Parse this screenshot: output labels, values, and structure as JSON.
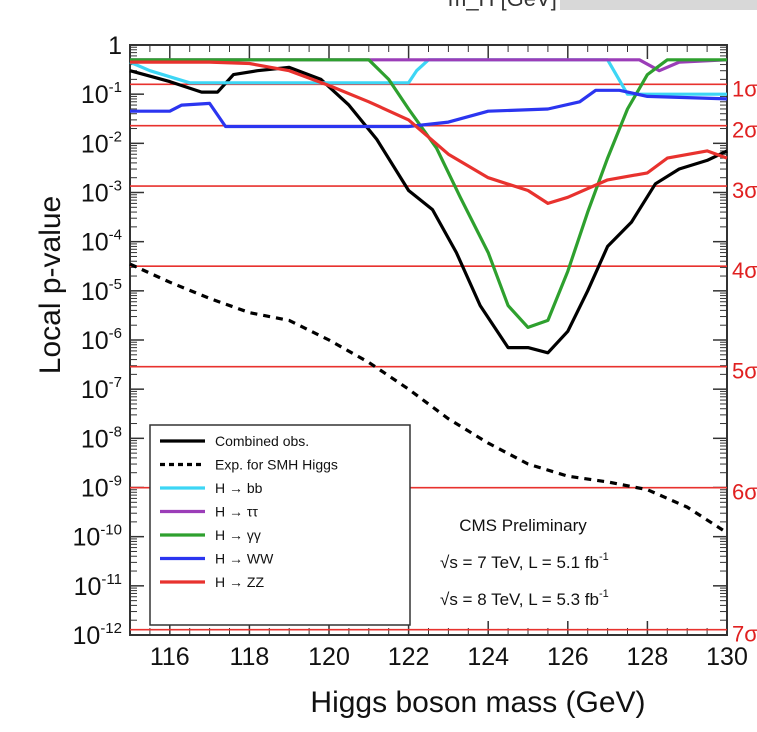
{
  "header_clip": "m_H [GeV]",
  "chart_data": {
    "type": "line",
    "xlabel": "Higgs boson mass (GeV)",
    "ylabel": "Local p-value",
    "xlim": [
      115,
      130
    ],
    "ylim": [
      1e-12,
      1
    ],
    "y_scale": "log",
    "x_ticks": [
      116,
      118,
      120,
      122,
      124,
      126,
      128,
      130
    ],
    "y_ticks": [
      {
        "value": 1,
        "base": "1",
        "exp": ""
      },
      {
        "value": 0.1,
        "base": "10",
        "exp": "-1"
      },
      {
        "value": 0.01,
        "base": "10",
        "exp": "-2"
      },
      {
        "value": 0.001,
        "base": "10",
        "exp": "-3"
      },
      {
        "value": 0.0001,
        "base": "10",
        "exp": "-4"
      },
      {
        "value": 1e-05,
        "base": "10",
        "exp": "-5"
      },
      {
        "value": 1e-06,
        "base": "10",
        "exp": "-6"
      },
      {
        "value": 1e-07,
        "base": "10",
        "exp": "-7"
      },
      {
        "value": 1e-08,
        "base": "10",
        "exp": "-8"
      },
      {
        "value": 1e-09,
        "base": "10",
        "exp": "-9"
      },
      {
        "value": 1e-10,
        "base": "10",
        "exp": "-10"
      },
      {
        "value": 1e-11,
        "base": "10",
        "exp": "-11"
      },
      {
        "value": 1e-12,
        "base": "10",
        "exp": "-12"
      }
    ],
    "sigma_lines": [
      {
        "label": "1σ",
        "p": 0.159
      },
      {
        "label": "2σ",
        "p": 0.0228
      },
      {
        "label": "3σ",
        "p": 0.00135
      },
      {
        "label": "4σ",
        "p": 3.17e-05
      },
      {
        "label": "5σ",
        "p": 2.87e-07
      },
      {
        "label": "6σ",
        "p": 9.9e-10
      },
      {
        "label": "7σ",
        "p": 1.28e-12
      }
    ],
    "legend_position": "bottom-left",
    "annotations": {
      "title": "CMS Preliminary",
      "line1": {
        "prefix": "√s = 7 TeV, L = 5.1 fb",
        "sup": "-1"
      },
      "line2": {
        "prefix": "√s = 8 TeV, L = 5.3 fb",
        "sup": "-1"
      }
    },
    "series": [
      {
        "name": "Combined  obs.",
        "color": "#000000",
        "dash": "",
        "points": [
          [
            115,
            0.3
          ],
          [
            116,
            0.18
          ],
          [
            116.8,
            0.11
          ],
          [
            117.2,
            0.11
          ],
          [
            117.6,
            0.25
          ],
          [
            118.2,
            0.3
          ],
          [
            119,
            0.35
          ],
          [
            119.8,
            0.2
          ],
          [
            120.5,
            0.06
          ],
          [
            121.2,
            0.012
          ],
          [
            122,
            0.0011
          ],
          [
            122.6,
            0.00045
          ],
          [
            123.2,
            6e-05
          ],
          [
            123.8,
            5e-06
          ],
          [
            124.5,
            7e-07
          ],
          [
            125,
            7e-07
          ],
          [
            125.5,
            5.5e-07
          ],
          [
            126,
            1.5e-06
          ],
          [
            126.5,
            1e-05
          ],
          [
            127,
            8e-05
          ],
          [
            127.6,
            0.00025
          ],
          [
            128.2,
            0.0015
          ],
          [
            128.8,
            0.003
          ],
          [
            129.5,
            0.0045
          ],
          [
            130,
            0.007
          ]
        ]
      },
      {
        "name": "Exp. for SMH Higgs",
        "color": "#000000",
        "dash": "7,6",
        "points": [
          [
            115,
            3.5e-05
          ],
          [
            116,
            1.5e-05
          ],
          [
            117,
            7e-06
          ],
          [
            118,
            3.6e-06
          ],
          [
            119,
            2.5e-06
          ],
          [
            120,
            1e-06
          ],
          [
            121,
            3.5e-07
          ],
          [
            122,
            1e-07
          ],
          [
            123,
            2.5e-08
          ],
          [
            124,
            8e-09
          ],
          [
            125,
            3e-09
          ],
          [
            126,
            1.7e-09
          ],
          [
            127,
            1.3e-09
          ],
          [
            128,
            9e-10
          ],
          [
            129,
            4e-10
          ],
          [
            130,
            1.2e-10
          ]
        ]
      },
      {
        "name": "H → bb",
        "color": "#3dd6f5",
        "dash": "",
        "points": [
          [
            115,
            0.45
          ],
          [
            115.5,
            0.3
          ],
          [
            116.5,
            0.17
          ],
          [
            117.5,
            0.17
          ],
          [
            120,
            0.17
          ],
          [
            122,
            0.17
          ],
          [
            122.2,
            0.3
          ],
          [
            122.5,
            0.5
          ],
          [
            127,
            0.5
          ],
          [
            127.5,
            0.1
          ],
          [
            128,
            0.1
          ],
          [
            130,
            0.1
          ]
        ]
      },
      {
        "name": "H → ττ",
        "color": "#9b3db8",
        "dash": "",
        "points": [
          [
            115,
            0.5
          ],
          [
            127.8,
            0.5
          ],
          [
            128.3,
            0.3
          ],
          [
            128.8,
            0.45
          ],
          [
            130,
            0.5
          ]
        ]
      },
      {
        "name": "H → γγ",
        "color": "#2ea02e",
        "dash": "",
        "points": [
          [
            115,
            0.5
          ],
          [
            121,
            0.5
          ],
          [
            121.5,
            0.2
          ],
          [
            122,
            0.05
          ],
          [
            122.7,
            0.008
          ],
          [
            123.3,
            0.0008
          ],
          [
            124,
            6e-05
          ],
          [
            124.5,
            5e-06
          ],
          [
            125,
            1.8e-06
          ],
          [
            125.5,
            2.5e-06
          ],
          [
            126,
            2.5e-05
          ],
          [
            126.5,
            0.0004
          ],
          [
            127,
            0.005
          ],
          [
            127.5,
            0.05
          ],
          [
            128,
            0.25
          ],
          [
            128.5,
            0.5
          ],
          [
            130,
            0.5
          ]
        ]
      },
      {
        "name": "H → WW",
        "color": "#2b35f0",
        "dash": "",
        "points": [
          [
            115,
            0.045
          ],
          [
            116,
            0.045
          ],
          [
            116.3,
            0.06
          ],
          [
            117,
            0.065
          ],
          [
            117.4,
            0.022
          ],
          [
            120,
            0.022
          ],
          [
            122,
            0.022
          ],
          [
            123,
            0.027
          ],
          [
            124,
            0.045
          ],
          [
            125.5,
            0.05
          ],
          [
            126.3,
            0.07
          ],
          [
            126.7,
            0.12
          ],
          [
            127.3,
            0.12
          ],
          [
            128,
            0.09
          ],
          [
            130,
            0.08
          ]
        ]
      },
      {
        "name": "H → ZZ",
        "color": "#e8322e",
        "dash": "",
        "points": [
          [
            115,
            0.45
          ],
          [
            117,
            0.45
          ],
          [
            118,
            0.42
          ],
          [
            119,
            0.3
          ],
          [
            120,
            0.15
          ],
          [
            121,
            0.07
          ],
          [
            122,
            0.03
          ],
          [
            123,
            0.006
          ],
          [
            124,
            0.002
          ],
          [
            125,
            0.0011
          ],
          [
            125.5,
            0.0006
          ],
          [
            126,
            0.0008
          ],
          [
            127,
            0.0018
          ],
          [
            128,
            0.0025
          ],
          [
            128.5,
            0.005
          ],
          [
            129.5,
            0.007
          ],
          [
            130,
            0.005
          ]
        ]
      }
    ]
  }
}
